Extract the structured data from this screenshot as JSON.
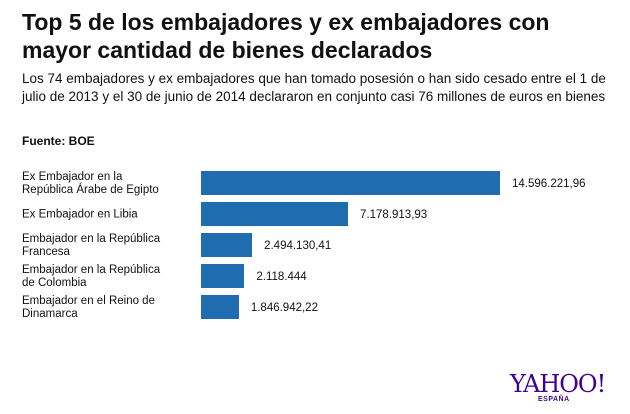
{
  "chart_data": {
    "type": "bar",
    "orientation": "horizontal",
    "title": "Top 5 de los embajadores y ex embajadores con mayor cantidad de bienes declarados",
    "subtitle": "Los 74 embajadores y ex embajadores que han tomado posesión o han sido cesado entre el 1 de julio de 2013 y el 30 de junio de 2014 declararon en conjunto casi 76 millones de euros en bienes",
    "source": "Fuente: BOE",
    "categories": [
      "Ex Embajador en la República Árabe de Egipto",
      "Ex Embajador en Libia",
      "Embajador en la República Francesa",
      "Embajador en la República de Colombia",
      "Embajador en el Reino de Dinamarca"
    ],
    "values": [
      14596221.96,
      7178913.93,
      2494130.41,
      2118444,
      1846942.22
    ],
    "value_labels": [
      "14.596.221,96",
      "7.178.913,93",
      "2.494.130,41",
      "2.118.444",
      "1.846.942,22"
    ],
    "color": "#1f6db0"
  },
  "logo": {
    "text": "YAHOO!",
    "sub": "ESPAÑA"
  }
}
